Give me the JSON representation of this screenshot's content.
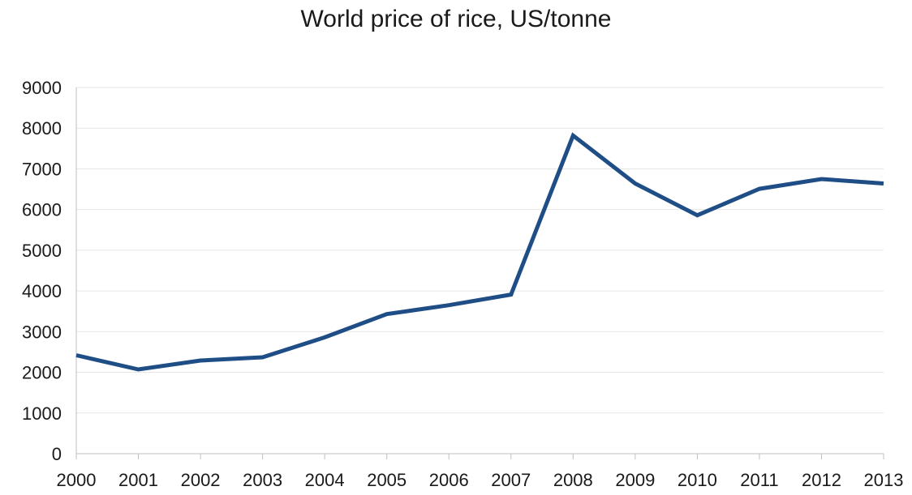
{
  "chart_data": {
    "type": "line",
    "title": "World price of rice, US/tonne",
    "xlabel": "",
    "ylabel": "",
    "categories": [
      "2000",
      "2001",
      "2002",
      "2003",
      "2004",
      "2005",
      "2006",
      "2007",
      "2008",
      "2009",
      "2010",
      "2011",
      "2012",
      "2013"
    ],
    "series": [
      {
        "values": [
          2420,
          2070,
          2290,
          2370,
          2860,
          3430,
          3650,
          3910,
          7820,
          6640,
          5860,
          6510,
          6750,
          6640
        ],
        "color": "#1f4e87"
      }
    ],
    "ylim": [
      0,
      9000
    ],
    "yticks": [
      0,
      1000,
      2000,
      3000,
      4000,
      5000,
      6000,
      7000,
      8000,
      9000
    ],
    "grid": true,
    "legend": "none"
  }
}
